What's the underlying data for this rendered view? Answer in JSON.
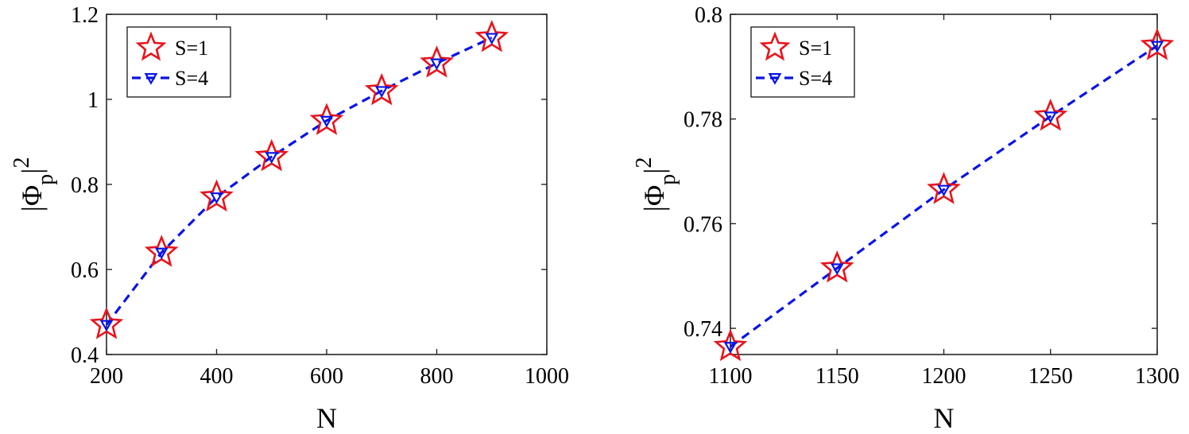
{
  "chart_data": [
    {
      "type": "line",
      "xlabel": "N",
      "ylabel": "|Φ_p|^2",
      "ylabel_parts": {
        "main": "|Φ",
        "sub": "p",
        "bar": "|",
        "sup": "2"
      },
      "xlim": [
        200,
        1000
      ],
      "ylim": [
        0.4,
        1.2
      ],
      "xticks": [
        200,
        400,
        600,
        800,
        1000
      ],
      "yticks": [
        0.4,
        0.6,
        0.8,
        1,
        1.2
      ],
      "xtick_labels": [
        "200",
        "400",
        "600",
        "800",
        "1000"
      ],
      "ytick_labels": [
        "0.4",
        "0.6",
        "0.8",
        "1",
        "1.2"
      ],
      "grid": false,
      "legend_position": "top-left",
      "series": [
        {
          "name": "S=1",
          "style": "red hollow star markers",
          "color": "#e8141c",
          "x": [
            200,
            300,
            400,
            500,
            600,
            700,
            800,
            900
          ],
          "y": [
            0.47,
            0.64,
            0.77,
            0.865,
            0.95,
            1.02,
            1.085,
            1.145
          ]
        },
        {
          "name": "S=4",
          "style": "blue dashed line with down-triangle markers",
          "color": "#0a14e6",
          "x": [
            200,
            300,
            400,
            500,
            600,
            700,
            800,
            900
          ],
          "y": [
            0.47,
            0.64,
            0.77,
            0.865,
            0.95,
            1.02,
            1.085,
            1.145
          ]
        }
      ]
    },
    {
      "type": "line",
      "xlabel": "N",
      "ylabel": "|Φ_p|^2",
      "ylabel_parts": {
        "main": "|Φ",
        "sub": "p",
        "bar": "|",
        "sup": "2"
      },
      "xlim": [
        1100,
        1300
      ],
      "ylim": [
        0.735,
        0.8
      ],
      "xticks": [
        1100,
        1150,
        1200,
        1250,
        1300
      ],
      "yticks": [
        0.74,
        0.76,
        0.78,
        0.8
      ],
      "xtick_labels": [
        "1100",
        "1150",
        "1200",
        "1250",
        "1300"
      ],
      "ytick_labels": [
        "0.74",
        "0.76",
        "0.78",
        "0.8"
      ],
      "grid": false,
      "legend_position": "top-left",
      "series": [
        {
          "name": "S=1",
          "style": "red hollow star markers",
          "color": "#e8141c",
          "x": [
            1100,
            1150,
            1200,
            1250,
            1300
          ],
          "y": [
            0.7365,
            0.7515,
            0.7665,
            0.7805,
            0.794
          ]
        },
        {
          "name": "S=4",
          "style": "blue dashed line with down-triangle markers",
          "color": "#0a14e6",
          "x": [
            1100,
            1150,
            1200,
            1250,
            1300
          ],
          "y": [
            0.7365,
            0.7515,
            0.7665,
            0.7805,
            0.794
          ]
        }
      ]
    }
  ]
}
